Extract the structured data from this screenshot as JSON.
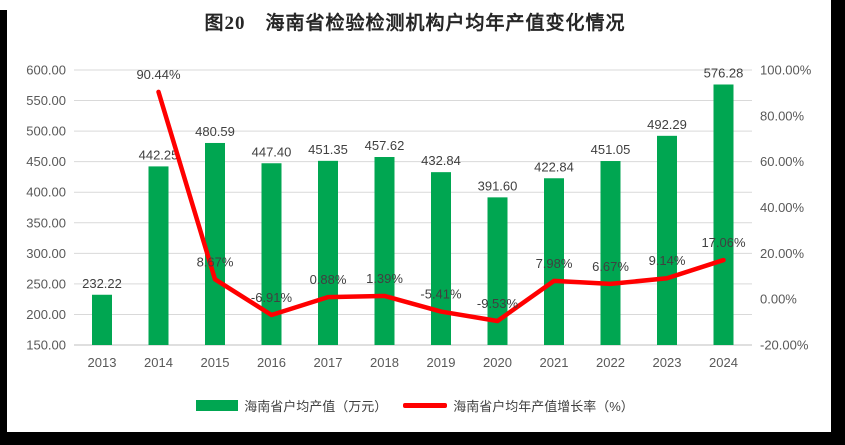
{
  "title": "图20　海南省检验检测机构户均年产值变化情况",
  "colors": {
    "bar": "#00A651",
    "line": "#FF0000",
    "grid": "#D9D9D9",
    "axis_line": "#BFBFBF",
    "axis_text": "#595959",
    "label_text": "#404040",
    "title_text": "#262626"
  },
  "chart_data": {
    "type": "bar+line combo",
    "categories": [
      "2013",
      "2014",
      "2015",
      "2016",
      "2017",
      "2018",
      "2019",
      "2020",
      "2021",
      "2022",
      "2023",
      "2024"
    ],
    "series": [
      {
        "name": "海南省户均产值（万元）",
        "type": "bar",
        "axis": "left",
        "values": [
          232.22,
          442.25,
          480.59,
          447.4,
          451.35,
          457.62,
          432.84,
          391.6,
          422.84,
          451.05,
          492.29,
          576.28
        ]
      },
      {
        "name": "海南省户均年产值增长率（%）",
        "type": "line",
        "axis": "right",
        "values": [
          null,
          90.44,
          8.67,
          -6.91,
          0.88,
          1.39,
          -5.41,
          -9.53,
          7.98,
          6.67,
          9.14,
          17.06
        ]
      }
    ],
    "bar_labels": [
      "232.22",
      "442.25",
      "480.59",
      "447.40",
      "451.35",
      "457.62",
      "432.84",
      "391.60",
      "422.84",
      "451.05",
      "492.29",
      "576.28"
    ],
    "line_labels": [
      null,
      "90.44%",
      "8.67%",
      "-6.91%",
      "0.88%",
      "1.39%",
      "-5.41%",
      "-9.53%",
      "7.98%",
      "6.67%",
      "9.14%",
      "17.06%"
    ],
    "left_axis": {
      "min": 150,
      "max": 600,
      "step": 50,
      "ticks": [
        "600.00",
        "550.00",
        "500.00",
        "450.00",
        "400.00",
        "350.00",
        "300.00",
        "250.00",
        "200.00",
        "150.00"
      ]
    },
    "right_axis": {
      "min": -20,
      "max": 100,
      "step": 20,
      "ticks": [
        "100.00%",
        "80.00%",
        "60.00%",
        "40.00%",
        "20.00%",
        "0.00%",
        "-20.00%"
      ]
    },
    "grid": true,
    "legend_position": "bottom"
  }
}
